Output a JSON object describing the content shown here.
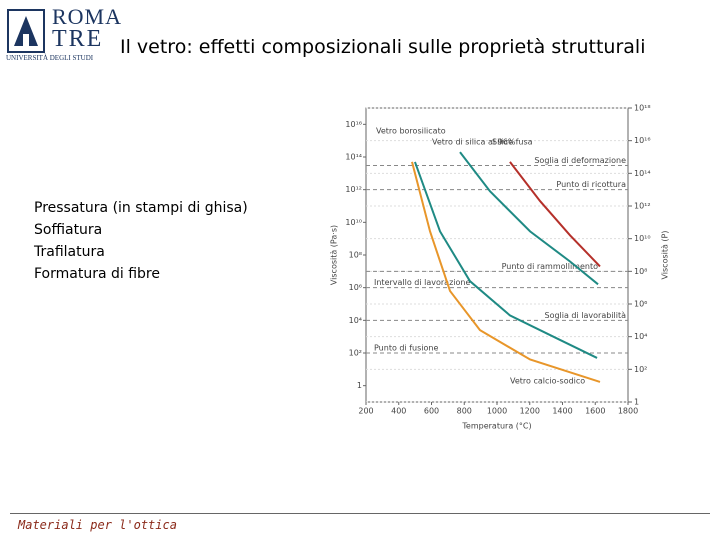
{
  "header": {
    "logo": {
      "line1": "ROMA",
      "line2": "TRE",
      "line3": "UNIVERSITÀ DEGLI STUDI"
    },
    "title": "Il vetro: effetti composizionali sulle proprietà strutturali"
  },
  "bullets": [
    "Pressatura (in stampi di ghisa)",
    "Soffiatura",
    "Trafilatura",
    "Formatura di fibre"
  ],
  "footer": "Materiali per l'ottica",
  "chart_data": {
    "type": "line",
    "x_label": "Temperatura (°C)",
    "y_label": "Viscosità (Pa·s)",
    "y2_label": "Viscosità (P)",
    "log_y": true,
    "xlim": [
      200,
      1800
    ],
    "xticks": [
      200,
      400,
      600,
      800,
      1000,
      1200,
      1400,
      1600,
      1800
    ],
    "ylim": [
      0.1,
      1e+17
    ],
    "yticks": [
      {
        "value": 1e+16,
        "label": "10¹⁶"
      },
      {
        "value": 100000000000000.0,
        "label": "10¹⁴"
      },
      {
        "value": 1000000000000.0,
        "label": "10¹²"
      },
      {
        "value": 10000000000.0,
        "label": "10¹⁰"
      },
      {
        "value": 100000000.0,
        "label": "10⁸"
      },
      {
        "value": 1000000.0,
        "label": "10⁶"
      },
      {
        "value": 10000.0,
        "label": "10⁴"
      },
      {
        "value": 100,
        "label": "10²"
      },
      1
    ],
    "y2lim": [
      1,
      1e+18
    ],
    "y2ticks": [
      {
        "value": 1e+18,
        "label": "10¹⁸"
      },
      {
        "value": 1e+16,
        "label": "10¹⁶"
      },
      {
        "value": 100000000000000.0,
        "label": "10¹⁴"
      },
      {
        "value": 1000000000000.0,
        "label": "10¹²"
      },
      {
        "value": 10000000000.0,
        "label": "10¹⁰"
      },
      {
        "value": 100000000.0,
        "label": "10⁸"
      },
      {
        "value": 1000000.0,
        "label": "10⁶"
      },
      {
        "value": 10000.0,
        "label": "10⁴"
      },
      {
        "value": 100,
        "label": "10²"
      },
      1
    ],
    "series": [
      {
        "name": "Vetro calcio-sodico",
        "color": "#e8962a",
        "x": [
          481,
          591,
          713,
          896,
          1202,
          1629
        ],
        "values": [
          50000000000000.0,
          2800000000.0,
          630000.0,
          2500,
          40,
          1.7
        ]
      },
      {
        "name": "Vetro borosilicato",
        "color": "#1f8a84",
        "x": [
          499,
          652,
          835,
          1079,
          1385,
          1611
        ],
        "values": [
          50000000000000.0,
          2800000000.0,
          2500000.0,
          20000.0,
          630,
          50
        ]
      },
      {
        "name": "Vetro di silica al 96%",
        "color": "#1f8a84",
        "x": [
          774,
          957,
          1202,
          1446,
          1617
        ],
        "values": [
          200000000000000.0,
          800000000000.0,
          2800000000.0,
          40000000.0,
          1600000.0
        ]
      },
      {
        "name": "Silice fusa",
        "color": "#b5302a",
        "x": [
          1079,
          1263,
          1446,
          1629
        ],
        "values": [
          50000000000000.0,
          200000000000.0,
          1600000000.0,
          20000000.0
        ]
      }
    ],
    "reference_lines": [
      {
        "label": "Soglia di deformazione",
        "value": 30000000000000.0
      },
      {
        "label": "Punto di ricottura",
        "value": 1000000000000.0
      },
      {
        "label": "Punto di rammollimento",
        "value": 10000000.0
      },
      {
        "label": "Intervallo di lavorazione",
        "value": 1000000.0
      },
      {
        "label": "Soglia di lavorabilità",
        "value": 10000.0
      },
      {
        "label": "Punto di fusione",
        "value": 100
      }
    ],
    "grid": true
  }
}
